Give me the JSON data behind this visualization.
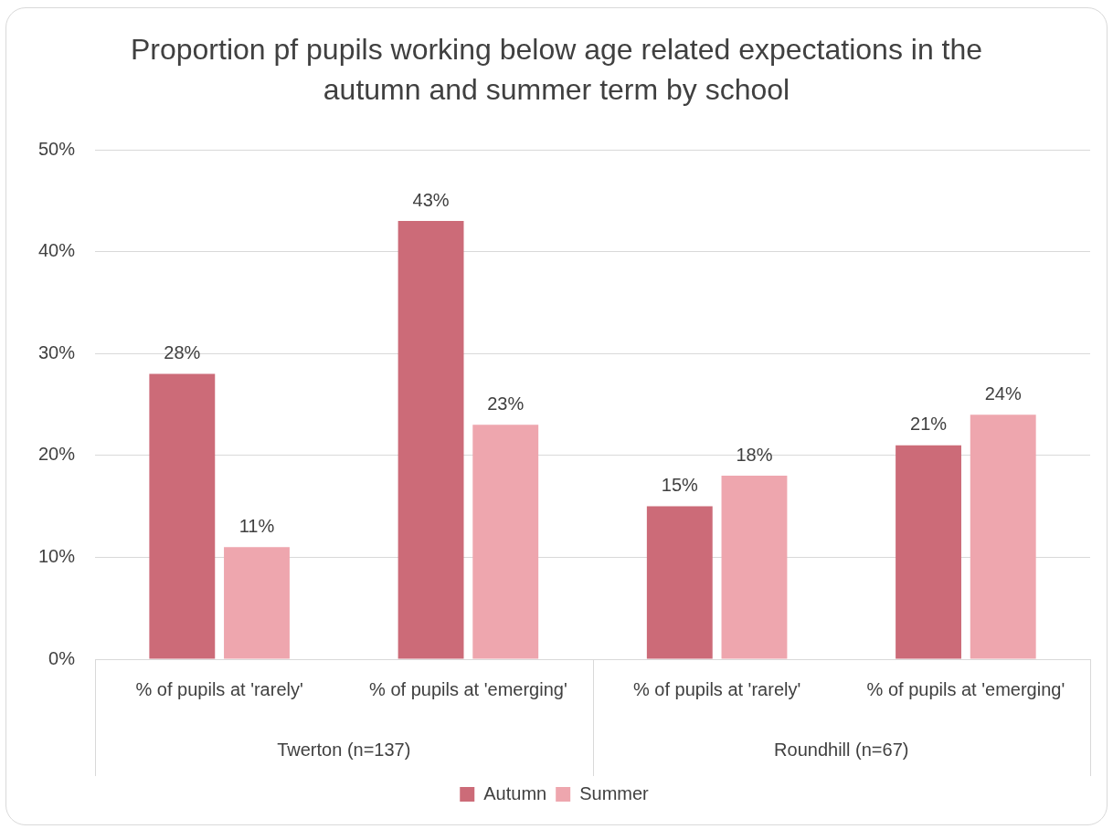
{
  "chart_data": {
    "type": "bar",
    "title": "Proportion pf pupils working below age related expectations in the autumn and summer term by school",
    "categories": [
      "% of pupils at 'rarely'",
      "% of pupils at 'emerging'",
      "% of pupils at 'rarely'",
      "% of pupils at 'emerging'"
    ],
    "series": [
      {
        "name": "Autumn",
        "color": "#cc6b78",
        "values": [
          28,
          43,
          15,
          21
        ],
        "value_labels": [
          "28%",
          "43%",
          "15%",
          "21%"
        ]
      },
      {
        "name": "Summer",
        "color": "#eea6ae",
        "values": [
          11,
          23,
          18,
          24
        ],
        "value_labels": [
          "11%",
          "23%",
          "18%",
          "24%"
        ]
      }
    ],
    "ylim": [
      0,
      50
    ],
    "yticks": [
      {
        "value": 0,
        "label": "0%"
      },
      {
        "value": 10,
        "label": "10%"
      },
      {
        "value": 20,
        "label": "20%"
      },
      {
        "value": 30,
        "label": "30%"
      },
      {
        "value": 40,
        "label": "40%"
      },
      {
        "value": 50,
        "label": "50%"
      }
    ],
    "annotations": [
      "Twerton (n=137)",
      "Roundhill (n=67)"
    ],
    "grid": "y",
    "legend": "bottom"
  }
}
